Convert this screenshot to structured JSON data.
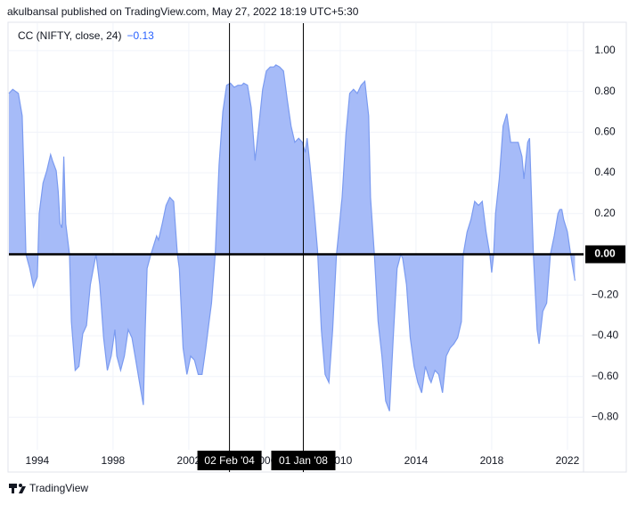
{
  "header": "akulbansal published on TradingView.com, May 27, 2022 18:19 UTC+5:30",
  "footer": "TradingView",
  "chart_data": {
    "type": "area",
    "legend": {
      "name": "CC (NIFTY, close, 24)",
      "last_value_label": "−0.13"
    },
    "color": "#7b9bf0",
    "fill": "#a6bbf8",
    "grid": true,
    "zero_line": true,
    "x": [
      1992.5,
      1992.7,
      1993.0,
      1993.2,
      1993.3,
      1993.4,
      1993.6,
      1993.8,
      1994.0,
      1994.1,
      1994.3,
      1994.5,
      1994.7,
      1994.8,
      1995.0,
      1995.1,
      1995.2,
      1995.3,
      1995.4,
      1995.5,
      1995.7,
      1995.8,
      1996.0,
      1996.2,
      1996.4,
      1996.6,
      1996.8,
      1997.1,
      1997.3,
      1997.5,
      1997.7,
      1997.9,
      1998.1,
      1998.2,
      1998.4,
      1998.6,
      1998.8,
      1999.0,
      1999.2,
      1999.4,
      1999.6,
      1999.7,
      1999.8,
      2000.0,
      2000.3,
      2000.4,
      2000.6,
      2000.8,
      2001.0,
      2001.2,
      2001.4,
      2001.5,
      2001.7,
      2001.9,
      2002.1,
      2002.3,
      2002.5,
      2002.7,
      2002.9,
      2003.1,
      2003.2,
      2003.4,
      2003.6,
      2003.8,
      2004.0,
      2004.2,
      2004.4,
      2004.6,
      2004.8,
      2004.9,
      2005.1,
      2005.3,
      2005.5,
      2005.7,
      2005.9,
      2006.1,
      2006.3,
      2006.5,
      2006.6,
      2006.8,
      2007.0,
      2007.2,
      2007.4,
      2007.6,
      2007.8,
      2008.0,
      2008.15,
      2008.25,
      2008.4,
      2008.6,
      2008.8,
      2009.0,
      2009.2,
      2009.4,
      2009.6,
      2009.8,
      2009.9,
      2010.1,
      2010.3,
      2010.5,
      2010.7,
      2010.9,
      2011.1,
      2011.3,
      2011.5,
      2011.6,
      2011.8,
      2012.0,
      2012.2,
      2012.4,
      2012.6,
      2012.8,
      2013.0,
      2013.2,
      2013.3,
      2013.5,
      2013.7,
      2013.9,
      2014.1,
      2014.3,
      2014.5,
      2014.7,
      2014.8,
      2015.0,
      2015.2,
      2015.4,
      2015.6,
      2015.8,
      2016.0,
      2016.2,
      2016.4,
      2016.5,
      2016.7,
      2016.9,
      2017.1,
      2017.3,
      2017.5,
      2017.7,
      2017.9,
      2018.0,
      2018.1,
      2018.2,
      2018.4,
      2018.6,
      2018.8,
      2019.0,
      2019.2,
      2019.4,
      2019.6,
      2019.7,
      2019.9,
      2020.0,
      2020.2,
      2020.4,
      2020.5,
      2020.7,
      2020.9,
      2021.1,
      2021.3,
      2021.5,
      2021.6,
      2021.7,
      2021.8,
      2022.0,
      2022.2,
      2022.4
    ],
    "values": [
      0.79,
      0.81,
      0.79,
      0.68,
      0.37,
      0,
      -0.07,
      -0.16,
      -0.11,
      0.2,
      0.35,
      0.41,
      0.49,
      0.46,
      0.41,
      0.31,
      0.15,
      0.13,
      0.48,
      0.15,
      0,
      -0.33,
      -0.57,
      -0.55,
      -0.39,
      -0.35,
      -0.15,
      0,
      -0.15,
      -0.41,
      -0.57,
      -0.5,
      -0.37,
      -0.5,
      -0.57,
      -0.5,
      -0.37,
      -0.41,
      -0.52,
      -0.63,
      -0.74,
      -0.37,
      -0.07,
      0,
      0.09,
      0.07,
      0.15,
      0.24,
      0.28,
      0.26,
      0,
      -0.07,
      -0.46,
      -0.59,
      -0.5,
      -0.52,
      -0.59,
      -0.59,
      -0.46,
      -0.31,
      -0.24,
      0,
      0.44,
      0.7,
      0.83,
      0.84,
      0.82,
      0.83,
      0.83,
      0.84,
      0.83,
      0.72,
      0.46,
      0.63,
      0.81,
      0.9,
      0.92,
      0.92,
      0.93,
      0.92,
      0.9,
      0.76,
      0.63,
      0.55,
      0.57,
      0.55,
      0.5,
      0.57,
      0.44,
      0.24,
      0.02,
      -0.37,
      -0.59,
      -0.63,
      -0.37,
      0,
      0.09,
      0.28,
      0.59,
      0.79,
      0.81,
      0.79,
      0.83,
      0.85,
      0.68,
      0.28,
      0,
      -0.33,
      -0.5,
      -0.72,
      -0.77,
      -0.41,
      -0.07,
      0,
      -0.02,
      -0.15,
      -0.41,
      -0.55,
      -0.63,
      -0.68,
      -0.55,
      -0.61,
      -0.63,
      -0.57,
      -0.59,
      -0.68,
      -0.5,
      -0.46,
      -0.44,
      -0.41,
      -0.33,
      0,
      0.11,
      0.17,
      0.26,
      0.24,
      0.26,
      0.11,
      0,
      -0.09,
      0,
      0.2,
      0.37,
      0.63,
      0.69,
      0.55,
      0.55,
      0.55,
      0.48,
      0.37,
      0.55,
      0.57,
      0,
      -0.37,
      -0.44,
      -0.28,
      -0.24,
      0,
      0.09,
      0.2,
      0.22,
      0.22,
      0.17,
      0.11,
      -0.02,
      -0.13
    ],
    "xlim": [
      1992.5,
      2022.85
    ],
    "xticks": [
      1994,
      1998,
      2002,
      2006,
      2010,
      2014,
      2018,
      2022
    ],
    "ylim": [
      -0.96,
      1.135
    ],
    "yticks": [
      {
        "value": 1,
        "label": "1.00"
      },
      {
        "value": 0.8,
        "label": "0.80"
      },
      {
        "value": 0.6,
        "label": "0.60"
      },
      {
        "value": 0.4,
        "label": "0.40"
      },
      {
        "value": 0.2,
        "label": "0.20"
      },
      {
        "value": 0,
        "label": "0.00"
      },
      {
        "value": -0.2,
        "label": "−0.20"
      },
      {
        "value": -0.4,
        "label": "−0.40"
      },
      {
        "value": -0.6,
        "label": "−0.60"
      },
      {
        "value": -0.8,
        "label": "−0.80"
      }
    ],
    "markers": [
      {
        "x": 2004.15,
        "label": "02 Feb '04"
      },
      {
        "x": 2008.05,
        "label": "01 Jan '08"
      }
    ]
  }
}
